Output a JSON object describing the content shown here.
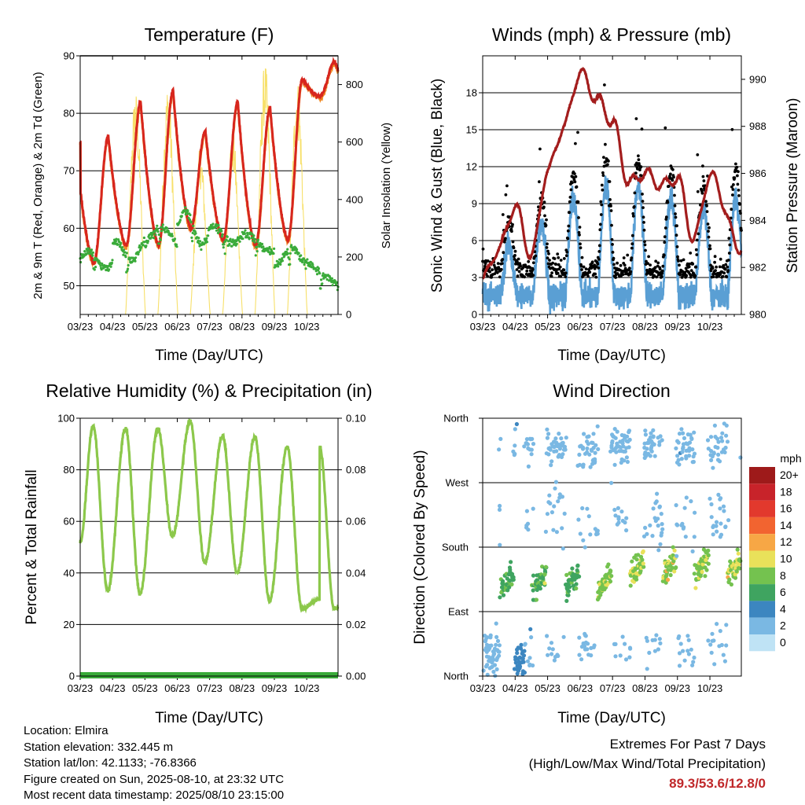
{
  "colors": {
    "temp2m": "#d7261e",
    "temp9m": "#f08a24",
    "dewpoint": "#3aab3a",
    "solar": "#f7e06a",
    "wind": "#5a9fd4",
    "gust": "#000000",
    "pressure": "#a31d1d",
    "rh": "#8cc84b",
    "precip": "#3aab3a",
    "extremes": "#c0282a"
  },
  "chart_data": [
    {
      "type": "line",
      "title": "Temperature (F)",
      "xlabel": "Time (Day/UTC)",
      "ylabel": "2m & 9m T (Red, Orange) & 2m Td (Green)",
      "ylabel_right": "Solar Insolation (Yellow)",
      "x_ticks": [
        "03/23",
        "04/23",
        "05/23",
        "06/23",
        "07/23",
        "08/23",
        "09/23",
        "10/23"
      ],
      "xlim": [
        "2025-08-03",
        "2025-08-10 23:15"
      ],
      "ylim": [
        45,
        90
      ],
      "yticks": [
        50,
        60,
        70,
        80,
        90
      ],
      "ylim_right": [
        0,
        900
      ],
      "yticks_right": [
        0,
        200,
        400,
        600,
        800
      ],
      "grid": true,
      "temperature_daily": {
        "x": [
          "08/03",
          "08/04",
          "08/05",
          "08/06",
          "08/07",
          "08/08",
          "08/09",
          "08/10"
        ],
        "max": [
          76,
          82,
          84,
          77,
          82,
          81,
          86,
          89
        ],
        "min": [
          54,
          57,
          57,
          60,
          58,
          57,
          58,
          83
        ]
      },
      "dewpoint_range": [
        49,
        65
      ],
      "solar_daily_max": {
        "x": [
          "08/03",
          "08/04",
          "08/05",
          "08/06",
          "08/07",
          "08/08",
          "08/09",
          "08/10"
        ],
        "values": [
          0,
          780,
          800,
          580,
          650,
          880,
          820,
          0
        ]
      }
    },
    {
      "type": "scatter",
      "title": "Winds (mph) & Pressure (mb)",
      "xlabel": "Time (Day/UTC)",
      "ylabel": "Sonic Wind & Gust (Blue, Black)",
      "ylabel_right": "Station Pressure (Maroon)",
      "x_ticks": [
        "03/23",
        "04/23",
        "05/23",
        "06/23",
        "07/23",
        "08/23",
        "09/23",
        "10/23"
      ],
      "ylim": [
        0,
        21
      ],
      "yticks": [
        0,
        3,
        6,
        9,
        12,
        15,
        18
      ],
      "ylim_right": [
        980,
        991
      ],
      "yticks_right": [
        980,
        982,
        984,
        986,
        988,
        990
      ],
      "grid": true,
      "gust_daily_max": [
        11,
        14,
        17,
        19,
        19,
        17,
        19,
        19
      ],
      "pressure_points": {
        "x": [
          "08/03 00:00",
          "08/03 12:00",
          "08/04 00:00",
          "08/04 12:00",
          "08/05 00:00",
          "08/05 12:00",
          "08/06 00:00",
          "08/06 12:00",
          "08/07 00:00",
          "08/07 12:00",
          "08/08 00:00",
          "08/08 12:00",
          "08/09 00:00",
          "08/09 12:00",
          "08/10 00:00",
          "08/10 23:15"
        ],
        "values": [
          981.5,
          982.8,
          984.6,
          982.5,
          986.1,
          988.0,
          990.3,
          989.2,
          988.2,
          985.6,
          986.0,
          985.5,
          985.8,
          983.2,
          985.9,
          982.8
        ]
      }
    },
    {
      "type": "line",
      "title": "Relative Humidity (%) & Precipitation (in)",
      "xlabel": "Time (Day/UTC)",
      "ylabel": "Percent & Total Rainfall",
      "x_ticks": [
        "03/23",
        "04/23",
        "05/23",
        "06/23",
        "07/23",
        "08/23",
        "09/23",
        "10/23"
      ],
      "ylim": [
        0,
        100
      ],
      "yticks": [
        0,
        20,
        40,
        60,
        80,
        100
      ],
      "ylim_right": [
        0,
        0.1
      ],
      "yticks_right": [
        "0.00",
        "0.02",
        "0.04",
        "0.06",
        "0.08",
        "0.10"
      ],
      "grid": true,
      "rh_daily": {
        "max": [
          97,
          96,
          96,
          99,
          93,
          93,
          89
        ],
        "min": [
          33,
          32,
          54,
          44,
          40,
          29,
          26
        ]
      },
      "precipitation_total": 0
    },
    {
      "type": "scatter",
      "title": "Wind Direction",
      "xlabel": "Time (Day/UTC)",
      "ylabel": "Direction (Colored By Speed)",
      "x_ticks": [
        "03/23",
        "04/23",
        "05/23",
        "06/23",
        "07/23",
        "08/23",
        "09/23",
        "10/23"
      ],
      "y_ticks": [
        "North",
        "East",
        "South",
        "West",
        "North"
      ],
      "ylim_degrees": [
        0,
        360
      ],
      "grid": true,
      "legend": {
        "title": "mph",
        "labels": [
          "20+",
          "18",
          "16",
          "14",
          "12",
          "10",
          "8",
          "6",
          "4",
          "2",
          "0"
        ],
        "colors": [
          "#9e1a1a",
          "#c8232a",
          "#e2392d",
          "#f26430",
          "#f7a745",
          "#e9e15a",
          "#74c24f",
          "#3fa460",
          "#3c86c0",
          "#7ab8e3",
          "#bfe3f5"
        ],
        "placement": "right"
      }
    }
  ],
  "info": {
    "location": "Location: Elmira",
    "elevation": "Station elevation: 332.445 m",
    "latlon": "Station lat/lon: 42.1133; -76.8366",
    "created": "Figure created on Sun, 2025-08-10, at 23:32 UTC",
    "recent": "Most recent data timestamp: 2025/08/10 23:15:00"
  },
  "extremes": {
    "title": "Extremes For Past 7 Days",
    "subtitle": "(High/Low/Max Wind/Total Precipitation)",
    "values": "89.3/53.6/12.8/0"
  }
}
